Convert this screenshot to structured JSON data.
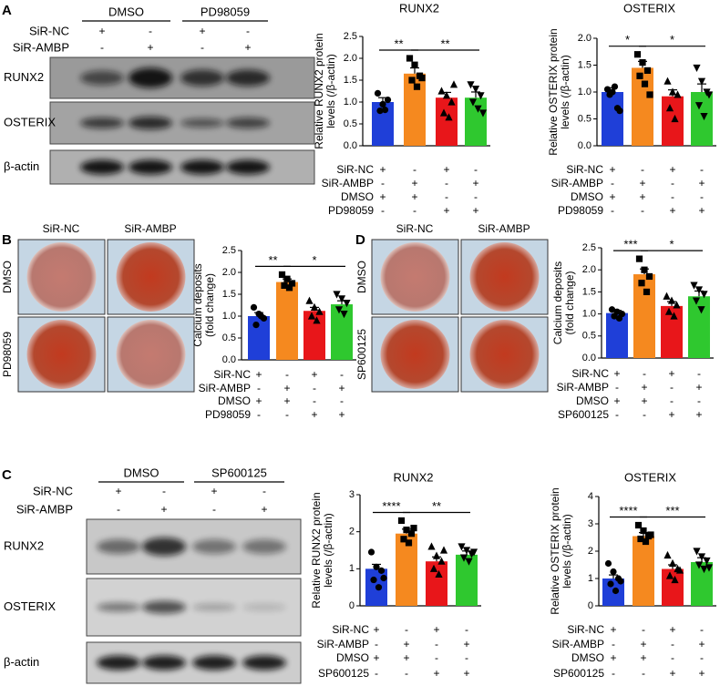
{
  "panel_labels": [
    "A",
    "B",
    "C",
    "D"
  ],
  "blot_a": {
    "groups": [
      "DMSO",
      "PD98059"
    ],
    "rows": [
      {
        "label": "SiR-NC",
        "marks": [
          "+",
          "-",
          "+",
          "-"
        ]
      },
      {
        "label": "SiR-AMBP",
        "marks": [
          "-",
          "+",
          "-",
          "+"
        ]
      }
    ],
    "bands": [
      "RUNX2",
      "OSTERIX",
      "β-actin"
    ]
  },
  "blot_c": {
    "groups": [
      "DMSO",
      "SP600125"
    ],
    "rows": [
      {
        "label": "SiR-NC",
        "marks": [
          "+",
          "-",
          "+",
          "-"
        ]
      },
      {
        "label": "SiR-AMBP",
        "marks": [
          "-",
          "+",
          "-",
          "+"
        ]
      }
    ],
    "bands": [
      "RUNX2",
      "OSTERIX",
      "β-actin"
    ]
  },
  "wells_b": {
    "columns": [
      "SiR-NC",
      "SiR-AMBP"
    ],
    "rows": [
      "DMSO",
      "PD98059"
    ]
  },
  "wells_d": {
    "columns": [
      "SiR-NC",
      "SiR-AMBP"
    ],
    "rows": [
      "DMSO",
      "SP600125"
    ]
  },
  "chart_data": [
    {
      "type": "bar",
      "title": "RUNX2",
      "ylabel": [
        "Relative RUNX2 protein",
        "levels (/β-actin)"
      ],
      "categories": [
        null,
        null,
        null,
        null
      ],
      "colors": [
        "#1f3fd8",
        "#f5891f",
        "#e8161a",
        "#2fc82f"
      ],
      "values": [
        1.0,
        1.65,
        1.1,
        1.1
      ],
      "errors": [
        0.1,
        0.13,
        0.12,
        0.13
      ],
      "points": [
        [
          1.2,
          0.95,
          1.05,
          0.8,
          0.82
        ],
        [
          2.0,
          1.85,
          1.6,
          1.5,
          1.35,
          1.55
        ],
        [
          1.25,
          1.15,
          1.0,
          0.75,
          0.65,
          1.4
        ],
        [
          1.4,
          1.3,
          1.15,
          1.0,
          0.85,
          0.75
        ]
      ],
      "ylim": [
        0,
        2.5
      ],
      "yticks": [
        {
          "value": 0,
          "label": "0.0"
        },
        {
          "value": 0.5,
          "label": "0.5"
        },
        {
          "value": 1,
          "label": "1.0"
        },
        {
          "value": 1.5,
          "label": "1.5"
        },
        {
          "value": 2,
          "label": "2.0"
        },
        {
          "value": 2.5,
          "label": "2.5"
        }
      ],
      "significance": [
        "**",
        "**"
      ],
      "conditions": [
        {
          "label": "SiR-NC",
          "marks": [
            "+",
            "-",
            "+",
            "-"
          ]
        },
        {
          "label": "SiR-AMBP",
          "marks": [
            "-",
            "+",
            "-",
            "+"
          ]
        },
        {
          "label": "DMSO",
          "marks": [
            "+",
            "+",
            "-",
            "-"
          ]
        },
        {
          "label": "PD98059",
          "marks": [
            "-",
            "-",
            "+",
            "+"
          ]
        }
      ]
    },
    {
      "type": "bar",
      "title": "OSTERIX",
      "ylabel": [
        "Relative OSTERIX protein",
        "levels (/β-actin)"
      ],
      "categories": [
        null,
        null,
        null,
        null
      ],
      "colors": [
        "#1f3fd8",
        "#f5891f",
        "#e8161a",
        "#2fc82f"
      ],
      "values": [
        1.0,
        1.45,
        0.92,
        1.0
      ],
      "errors": [
        0.08,
        0.12,
        0.12,
        0.15
      ],
      "points": [
        [
          1.05,
          1.0,
          0.7,
          0.95,
          1.1,
          0.65
        ],
        [
          1.7,
          1.55,
          1.4,
          1.3,
          1.15,
          0.95
        ],
        [
          1.2,
          1.0,
          0.95,
          0.7,
          0.5
        ],
        [
          1.45,
          1.2,
          1.0,
          0.75,
          0.55,
          0.95
        ]
      ],
      "ylim": [
        0,
        2
      ],
      "yticks": [
        {
          "value": 0,
          "label": "0.0"
        },
        {
          "value": 0.5,
          "label": "0.5"
        },
        {
          "value": 1,
          "label": "1.0"
        },
        {
          "value": 1.5,
          "label": "1.5"
        },
        {
          "value": 2,
          "label": "2.0"
        }
      ],
      "significance": [
        "*",
        "*"
      ],
      "conditions": [
        {
          "label": "SiR-NC",
          "marks": [
            "+",
            "-",
            "+",
            "-"
          ]
        },
        {
          "label": "SiR-AMBP",
          "marks": [
            "-",
            "+",
            "-",
            "+"
          ]
        },
        {
          "label": "DMSO",
          "marks": [
            "+",
            "+",
            "-",
            "-"
          ]
        },
        {
          "label": "PD98059",
          "marks": [
            "-",
            "-",
            "+",
            "+"
          ]
        }
      ]
    },
    {
      "type": "bar",
      "ylabel": [
        "Calcium deposits",
        "(fold change)"
      ],
      "categories": [
        null,
        null,
        null,
        null
      ],
      "colors": [
        "#1f3fd8",
        "#f5891f",
        "#e8161a",
        "#2fc82f"
      ],
      "values": [
        1.0,
        1.78,
        1.12,
        1.27
      ],
      "errors": [
        0.08,
        0.07,
        0.08,
        0.08
      ],
      "points": [
        [
          1.2,
          1.05,
          0.95,
          0.8,
          1.0
        ],
        [
          1.95,
          1.85,
          1.75,
          1.7,
          1.65
        ],
        [
          1.35,
          1.2,
          1.1,
          1.0,
          0.9
        ],
        [
          1.5,
          1.4,
          1.3,
          1.15,
          1.05
        ]
      ],
      "ylim": [
        0,
        2.5
      ],
      "yticks": [
        {
          "value": 0,
          "label": "0.0"
        },
        {
          "value": 0.5,
          "label": "0.5"
        },
        {
          "value": 1,
          "label": "1.0"
        },
        {
          "value": 1.5,
          "label": "1.5"
        },
        {
          "value": 2,
          "label": "2.0"
        },
        {
          "value": 2.5,
          "label": "2.5"
        }
      ],
      "significance": [
        "**",
        "*"
      ],
      "conditions": [
        {
          "label": "SiR-NC",
          "marks": [
            "+",
            "-",
            "+",
            "-"
          ]
        },
        {
          "label": "SiR-AMBP",
          "marks": [
            "-",
            "+",
            "-",
            "+"
          ]
        },
        {
          "label": "DMSO",
          "marks": [
            "+",
            "+",
            "-",
            "-"
          ]
        },
        {
          "label": "PD98059",
          "marks": [
            "-",
            "-",
            "+",
            "+"
          ]
        }
      ]
    },
    {
      "type": "bar",
      "ylabel": [
        "Calcium deposits",
        "(fold change)"
      ],
      "categories": [
        null,
        null,
        null,
        null
      ],
      "colors": [
        "#1f3fd8",
        "#f5891f",
        "#e8161a",
        "#2fc82f"
      ],
      "values": [
        1.02,
        1.9,
        1.18,
        1.4
      ],
      "errors": [
        0.06,
        0.12,
        0.1,
        0.12
      ],
      "points": [
        [
          1.1,
          1.05,
          1.0,
          0.95,
          0.9
        ],
        [
          2.25,
          2.0,
          1.85,
          1.7,
          1.5
        ],
        [
          1.4,
          1.3,
          1.2,
          1.05,
          0.95
        ],
        [
          1.65,
          1.55,
          1.45,
          1.3,
          1.1
        ]
      ],
      "ylim": [
        0,
        2.5
      ],
      "yticks": [
        {
          "value": 0,
          "label": "0.0"
        },
        {
          "value": 0.5,
          "label": "0.5"
        },
        {
          "value": 1,
          "label": "1.0"
        },
        {
          "value": 1.5,
          "label": "1.5"
        },
        {
          "value": 2,
          "label": "2.0"
        },
        {
          "value": 2.5,
          "label": "2.5"
        }
      ],
      "significance": [
        "***",
        "*"
      ],
      "conditions": [
        {
          "label": "SiR-NC",
          "marks": [
            "+",
            "-",
            "+",
            "-"
          ]
        },
        {
          "label": "SiR-AMBP",
          "marks": [
            "-",
            "+",
            "-",
            "+"
          ]
        },
        {
          "label": "DMSO",
          "marks": [
            "+",
            "+",
            "-",
            "-"
          ]
        },
        {
          "label": "SP600125",
          "marks": [
            "-",
            "-",
            "+",
            "+"
          ]
        }
      ]
    },
    {
      "type": "bar",
      "title": "RUNX2",
      "ylabel": [
        "Relative RUNX2 protein",
        "levels (/β-actin)"
      ],
      "categories": [
        null,
        null,
        null,
        null
      ],
      "colors": [
        "#1f3fd8",
        "#f5891f",
        "#e8161a",
        "#2fc82f"
      ],
      "values": [
        1.0,
        1.95,
        1.2,
        1.38
      ],
      "errors": [
        0.12,
        0.12,
        0.12,
        0.1
      ],
      "points": [
        [
          1.45,
          1.05,
          0.95,
          0.7,
          0.5,
          0.75
        ],
        [
          2.3,
          2.05,
          1.95,
          1.8,
          1.7,
          2.1
        ],
        [
          1.6,
          1.35,
          1.2,
          1.0,
          0.85,
          1.5
        ],
        [
          1.6,
          1.5,
          1.4,
          1.3,
          1.2,
          1.45
        ]
      ],
      "ylim": [
        0,
        3
      ],
      "yticks": [
        0,
        1,
        2,
        3
      ],
      "significance": [
        "****",
        "**"
      ],
      "conditions": [
        {
          "label": "SiR-NC",
          "marks": [
            "+",
            "-",
            "+",
            "-"
          ]
        },
        {
          "label": "SiR-AMBP",
          "marks": [
            "-",
            "+",
            "-",
            "+"
          ]
        },
        {
          "label": "DMSO",
          "marks": [
            "+",
            "+",
            "-",
            "-"
          ]
        },
        {
          "label": "SP600125",
          "marks": [
            "-",
            "-",
            "+",
            "+"
          ]
        }
      ]
    },
    {
      "type": "bar",
      "title": "OSTERIX",
      "ylabel": [
        "Relative OSTERIX protein",
        "levels (/β-actin)"
      ],
      "categories": [
        null,
        null,
        null,
        null
      ],
      "colors": [
        "#1f3fd8",
        "#f5891f",
        "#e8161a",
        "#2fc82f"
      ],
      "values": [
        1.0,
        2.55,
        1.35,
        1.6
      ],
      "errors": [
        0.13,
        0.13,
        0.15,
        0.16
      ],
      "points": [
        [
          1.55,
          1.25,
          1.0,
          0.8,
          0.55,
          0.9
        ],
        [
          2.95,
          2.75,
          2.55,
          2.45,
          2.35,
          2.6
        ],
        [
          1.85,
          1.55,
          1.35,
          1.1,
          0.95,
          1.3
        ],
        [
          2.0,
          1.8,
          1.65,
          1.5,
          1.35,
          1.4
        ]
      ],
      "ylim": [
        0,
        4
      ],
      "yticks": [
        0,
        1,
        2,
        3,
        4
      ],
      "significance": [
        "****",
        "***"
      ],
      "conditions": [
        {
          "label": "SiR-NC",
          "marks": [
            "+",
            "-",
            "+",
            "-"
          ]
        },
        {
          "label": "SiR-AMBP",
          "marks": [
            "-",
            "+",
            "-",
            "+"
          ]
        },
        {
          "label": "DMSO",
          "marks": [
            "+",
            "+",
            "-",
            "-"
          ]
        },
        {
          "label": "SP600125",
          "marks": [
            "-",
            "-",
            "+",
            "+"
          ]
        }
      ]
    }
  ]
}
